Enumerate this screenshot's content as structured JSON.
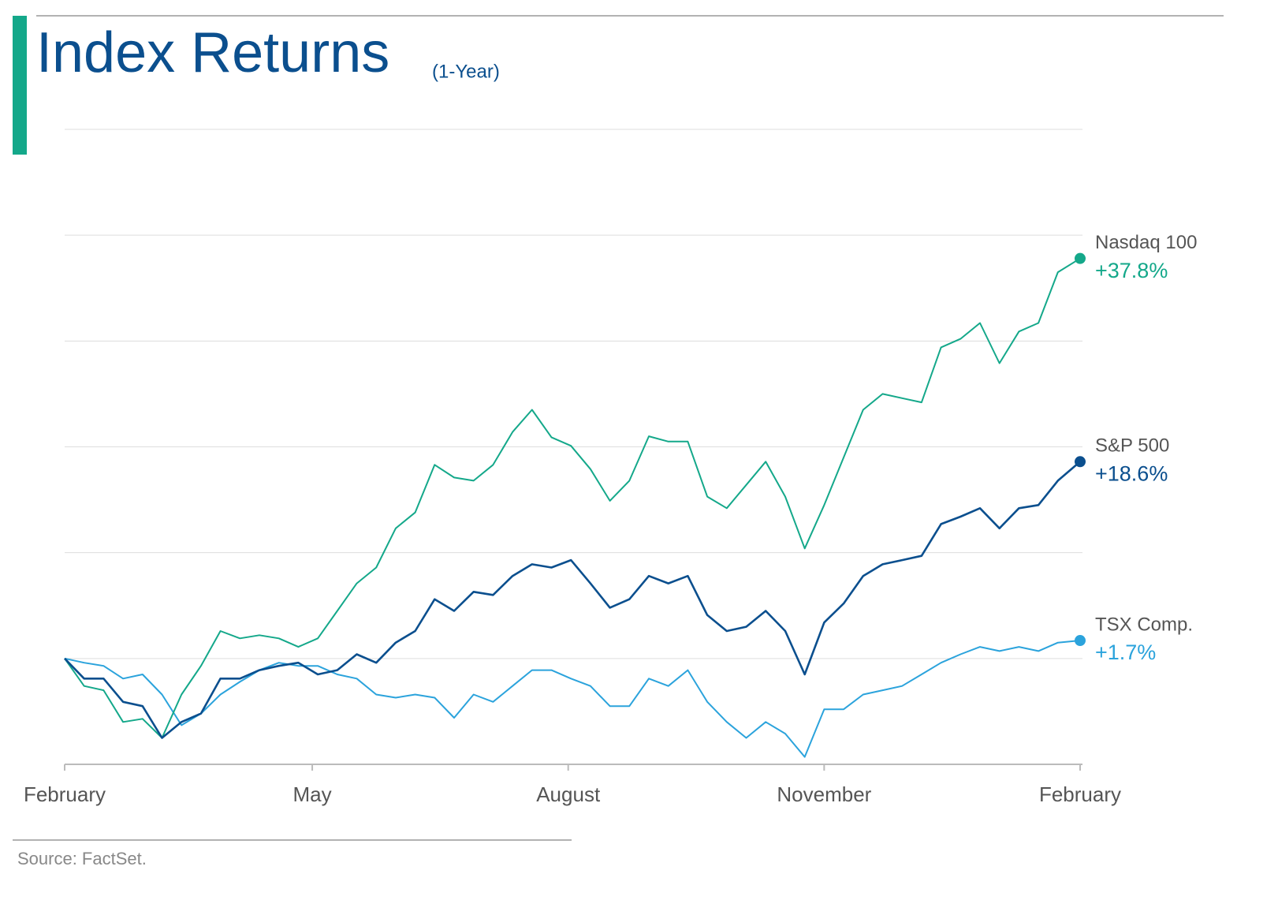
{
  "chart_data": {
    "type": "line",
    "title": "Index Returns",
    "subtitle": "(1-Year)",
    "source": "Source: FactSet.",
    "x": [
      0,
      7,
      14,
      21,
      28,
      35,
      42,
      49,
      56,
      63,
      70,
      77,
      84,
      91,
      98,
      105,
      112,
      119,
      126,
      133,
      140,
      147,
      154,
      161,
      168,
      175,
      182,
      189,
      196,
      203,
      210,
      217,
      224,
      231,
      238,
      245,
      252,
      259,
      266,
      273,
      280,
      287,
      294,
      301,
      308,
      315,
      322,
      329,
      336,
      343,
      350,
      357,
      365
    ],
    "xlim": [
      0,
      365
    ],
    "xticks": [
      {
        "value": 0,
        "label": "February"
      },
      {
        "value": 89,
        "label": "May"
      },
      {
        "value": 181,
        "label": "August"
      },
      {
        "value": 273,
        "label": "November"
      },
      {
        "value": 365,
        "label": "February"
      }
    ],
    "ylim": [
      -10,
      50
    ],
    "yticks": [
      -10,
      0,
      10,
      20,
      30,
      40,
      50
    ],
    "grid": true,
    "series": [
      {
        "name": "Nasdaq 100",
        "color": "#14a88a",
        "values": [
          0,
          -2.6,
          -3.0,
          -6.0,
          -5.7,
          -7.5,
          -3.4,
          -0.7,
          2.6,
          1.9,
          2.2,
          1.9,
          1.1,
          1.9,
          4.5,
          7.1,
          8.6,
          12.3,
          13.8,
          18.3,
          17.1,
          16.8,
          18.3,
          21.4,
          23.5,
          20.9,
          20.1,
          17.9,
          14.9,
          16.8,
          21.0,
          20.5,
          20.5,
          15.3,
          14.2,
          16.4,
          18.6,
          15.3,
          10.4,
          14.5,
          19.0,
          23.5,
          25.0,
          24.6,
          24.2,
          29.4,
          30.2,
          31.7,
          27.9,
          30.9,
          31.7,
          36.5,
          37.8
        ],
        "value_labels": [
          null,
          null,
          null,
          null,
          null,
          null,
          null,
          null,
          null,
          null,
          null,
          null,
          null,
          null,
          null,
          null,
          null,
          null,
          null,
          null,
          null,
          null,
          null,
          null,
          null,
          null,
          null,
          null,
          null,
          null,
          null,
          null,
          null,
          null,
          null,
          null,
          null,
          null,
          null,
          null,
          null,
          null,
          null,
          null,
          null,
          null,
          null,
          null,
          null,
          null,
          null,
          null,
          "+37.8%"
        ]
      },
      {
        "name": "S&P 500",
        "color": "#0b4f8e",
        "values": [
          0,
          -1.9,
          -1.9,
          -4.1,
          -4.5,
          -7.5,
          -6.0,
          -5.2,
          -1.9,
          -1.9,
          -1.1,
          -0.7,
          -0.4,
          -1.5,
          -1.1,
          0.4,
          -0.4,
          1.5,
          2.6,
          5.6,
          4.5,
          6.3,
          6.0,
          7.8,
          8.9,
          8.6,
          9.3,
          7.1,
          4.8,
          5.6,
          7.8,
          7.1,
          7.8,
          4.1,
          2.6,
          3.0,
          4.5,
          2.6,
          -1.5,
          3.4,
          5.2,
          7.8,
          8.9,
          9.3,
          9.7,
          12.7,
          13.4,
          14.2,
          12.3,
          14.2,
          14.5,
          16.8,
          18.6
        ],
        "value_labels": [
          null,
          null,
          null,
          null,
          null,
          null,
          null,
          null,
          null,
          null,
          null,
          null,
          null,
          null,
          null,
          null,
          null,
          null,
          null,
          null,
          null,
          null,
          null,
          null,
          null,
          null,
          null,
          null,
          null,
          null,
          null,
          null,
          null,
          null,
          null,
          null,
          null,
          null,
          null,
          null,
          null,
          null,
          null,
          null,
          null,
          null,
          null,
          null,
          null,
          null,
          null,
          null,
          "+18.6%"
        ]
      },
      {
        "name": "TSX Comp.",
        "color": "#2ba3dc",
        "values": [
          0,
          -0.4,
          -0.7,
          -1.9,
          -1.5,
          -3.4,
          -6.3,
          -5.2,
          -3.4,
          -2.2,
          -1.1,
          -0.4,
          -0.7,
          -0.7,
          -1.5,
          -1.9,
          -3.4,
          -3.7,
          -3.4,
          -3.7,
          -5.6,
          -3.4,
          -4.1,
          -2.6,
          -1.1,
          -1.1,
          -1.9,
          -2.6,
          -4.5,
          -4.5,
          -1.9,
          -2.6,
          -1.1,
          -4.1,
          -6.0,
          -7.5,
          -6.0,
          -7.1,
          -9.3,
          -4.8,
          -4.8,
          -3.4,
          -3.0,
          -2.6,
          -1.5,
          -0.4,
          0.4,
          1.1,
          0.7,
          1.1,
          0.7,
          1.5,
          1.7
        ],
        "value_labels": [
          null,
          null,
          null,
          null,
          null,
          null,
          null,
          null,
          null,
          null,
          null,
          null,
          null,
          null,
          null,
          null,
          null,
          null,
          null,
          null,
          null,
          null,
          null,
          null,
          null,
          null,
          null,
          null,
          null,
          null,
          null,
          null,
          null,
          null,
          null,
          null,
          null,
          null,
          null,
          null,
          null,
          null,
          null,
          null,
          null,
          null,
          null,
          null,
          null,
          null,
          null,
          null,
          "+1.7%"
        ]
      }
    ]
  }
}
